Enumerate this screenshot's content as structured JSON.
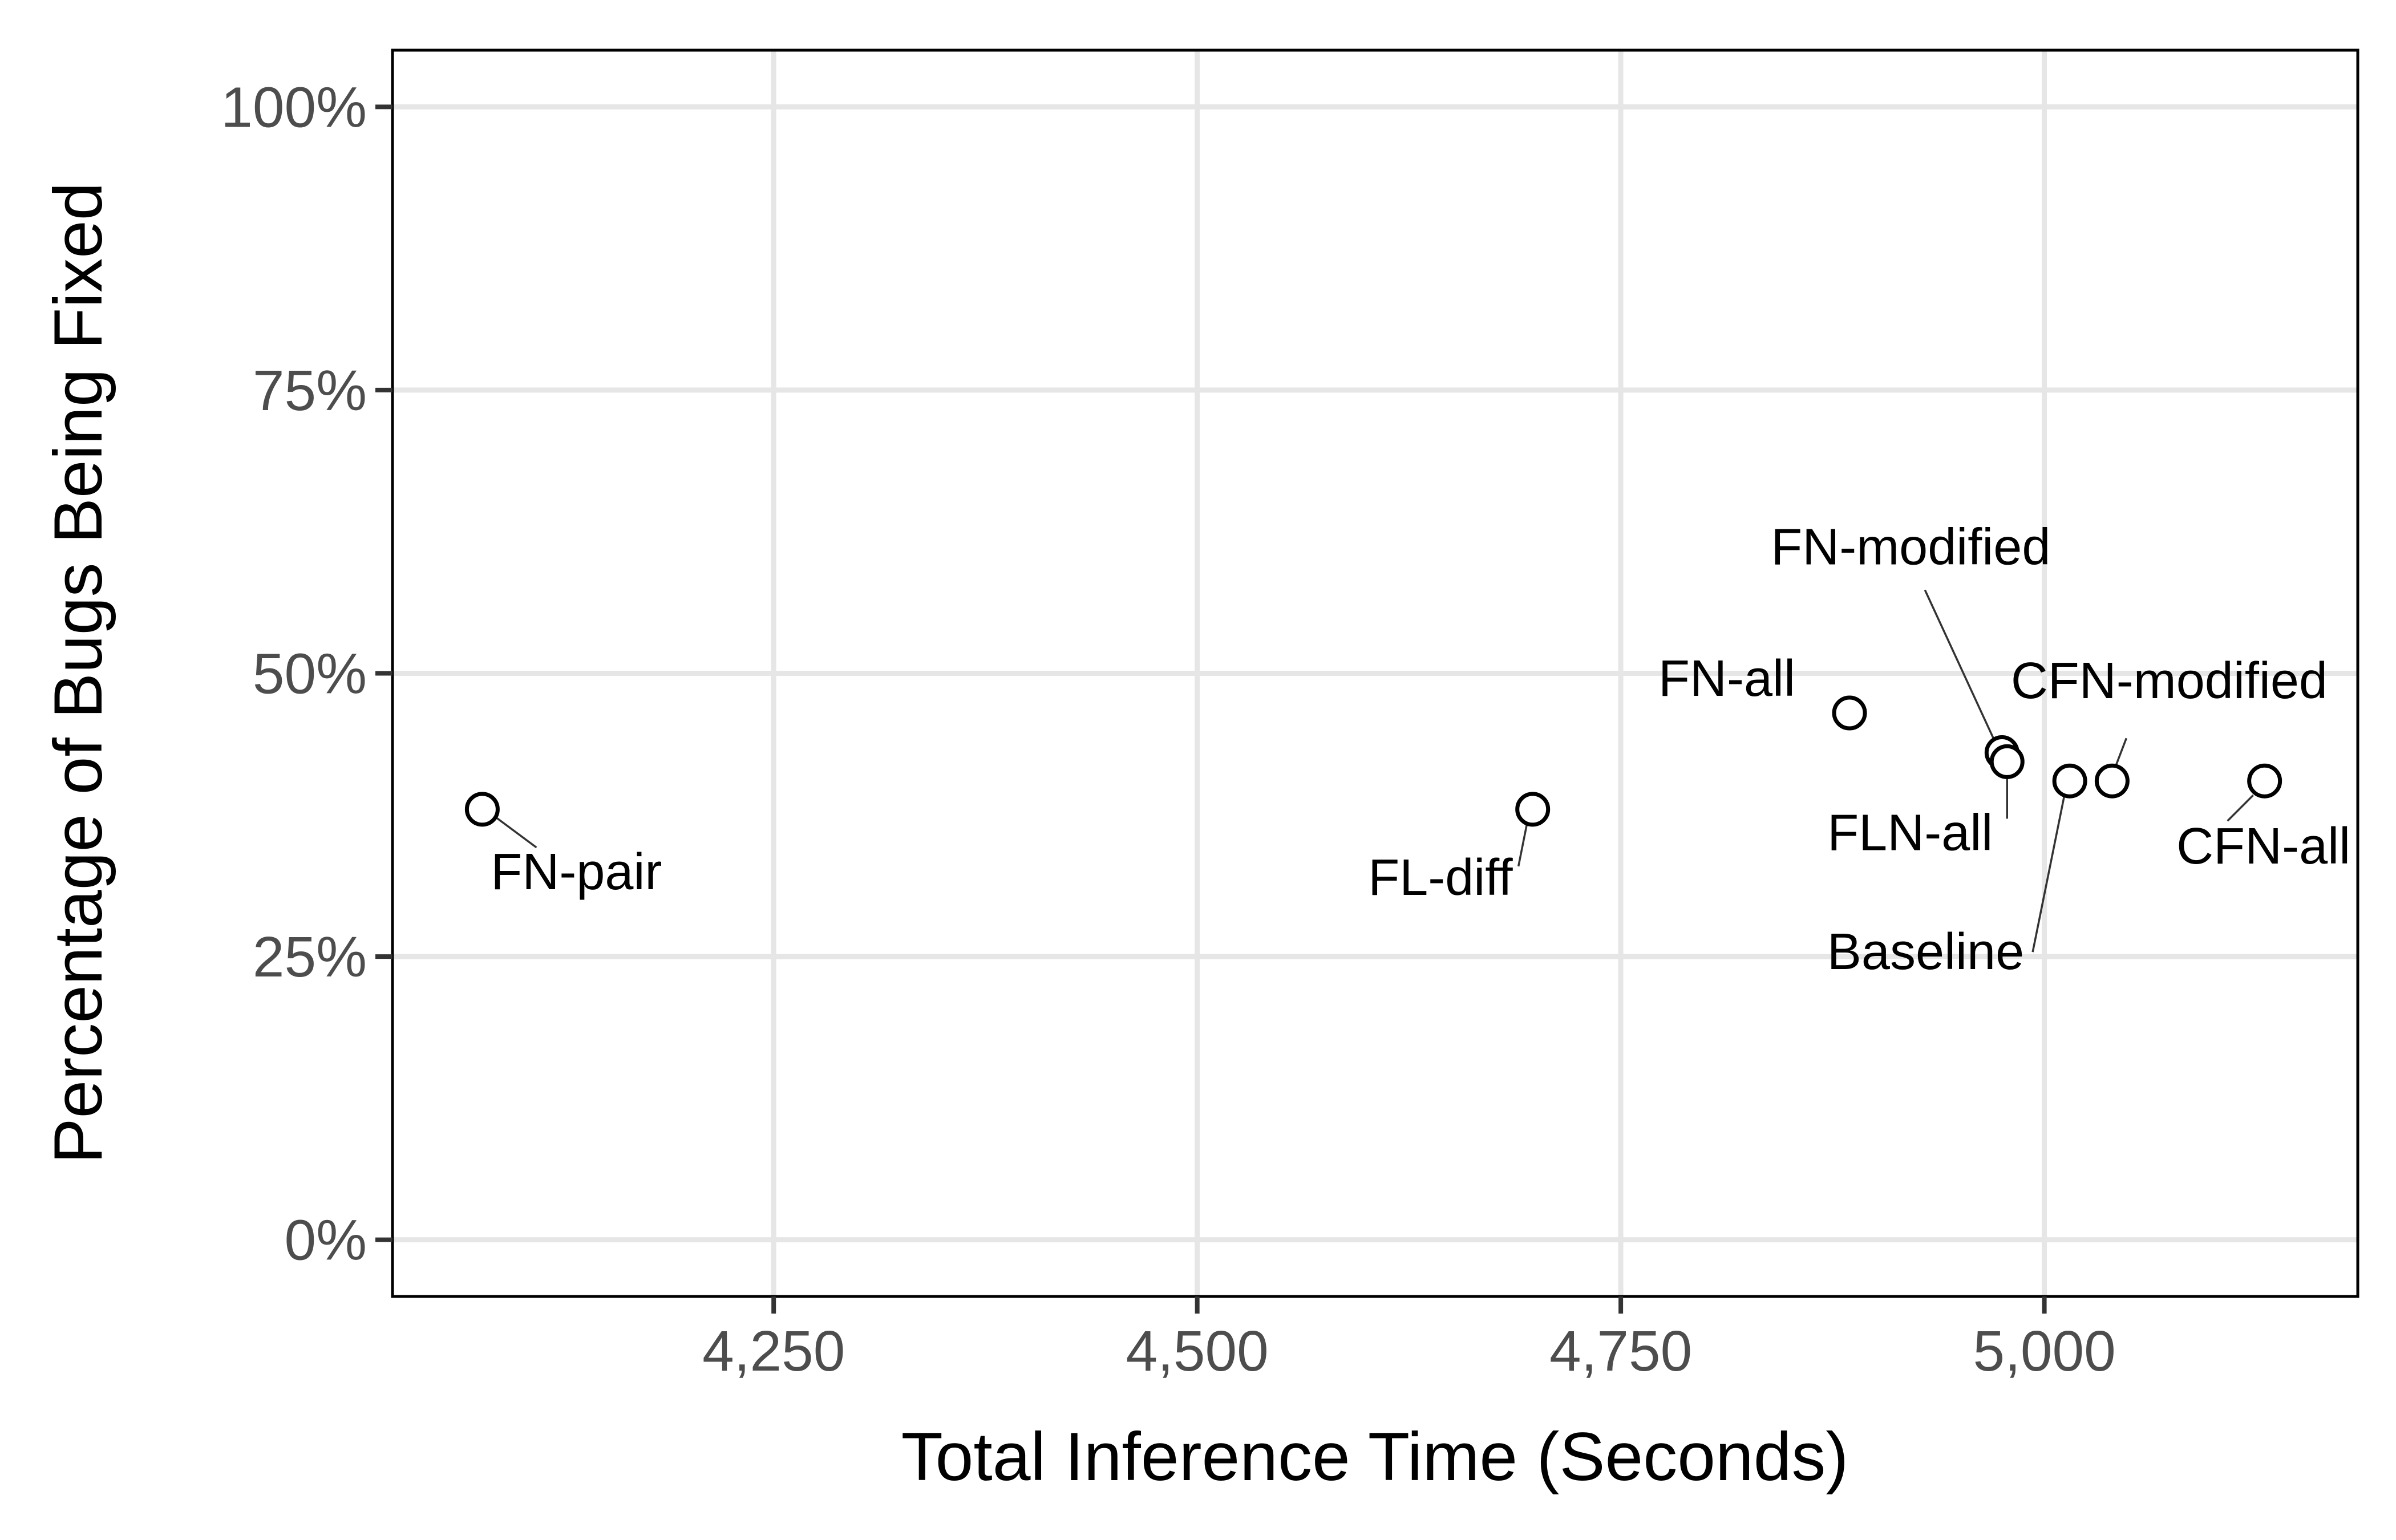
{
  "chart_data": {
    "type": "scatter",
    "title": "",
    "xlabel": "Total Inference Time (Seconds)",
    "ylabel": "Percentage of Bugs Being Fixed",
    "xlim": [
      4025,
      5185
    ],
    "ylim": [
      -5,
      105
    ],
    "x_ticks": [
      4250,
      4500,
      4750,
      5000
    ],
    "x_tick_labels": [
      "4,250",
      "4,500",
      "4,750",
      "5,000"
    ],
    "y_ticks": [
      0,
      25,
      50,
      75,
      100
    ],
    "y_tick_labels": [
      "0%",
      "25%",
      "50%",
      "75%",
      "100%"
    ],
    "grid": true,
    "legend": "none",
    "points": [
      {
        "label": "FN-pair",
        "x": 4078,
        "y": 38.0
      },
      {
        "label": "FL-diff",
        "x": 4698,
        "y": 38.0
      },
      {
        "label": "FN-all",
        "x": 4885,
        "y": 46.5
      },
      {
        "label": "FN-modified",
        "x": 4975,
        "y": 43.0
      },
      {
        "label": "FLN-all",
        "x": 4978,
        "y": 42.2
      },
      {
        "label": "Baseline",
        "x": 5015,
        "y": 40.5
      },
      {
        "label": "CFN-modified",
        "x": 5040,
        "y": 40.5
      },
      {
        "label": "CFN-all",
        "x": 5130,
        "y": 40.5
      }
    ]
  }
}
